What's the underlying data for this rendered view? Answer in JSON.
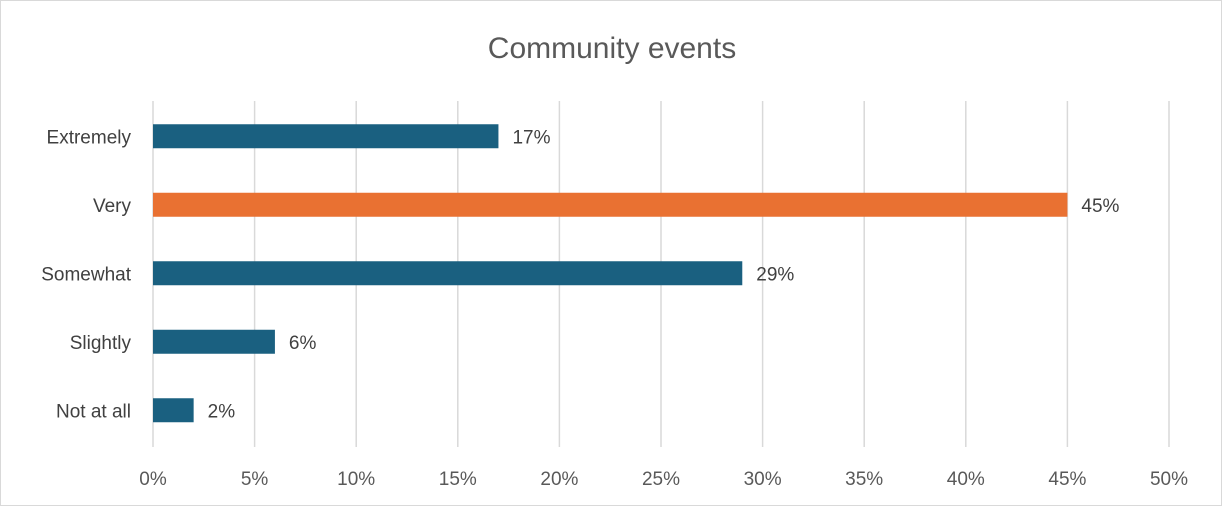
{
  "chart_data": {
    "type": "bar",
    "orientation": "horizontal",
    "title": "Community events",
    "categories": [
      "Extremely",
      "Very",
      "Somewhat",
      "Slightly",
      "Not at all"
    ],
    "values": [
      17,
      45,
      29,
      6,
      2
    ],
    "value_labels": [
      "17%",
      "45%",
      "29%",
      "6%",
      "2%"
    ],
    "highlight_index": 1,
    "xlim": [
      0,
      50
    ],
    "x_ticks": [
      0,
      5,
      10,
      15,
      20,
      25,
      30,
      35,
      40,
      45,
      50
    ],
    "x_tick_labels": [
      "0%",
      "5%",
      "10%",
      "15%",
      "20%",
      "25%",
      "30%",
      "35%",
      "40%",
      "45%",
      "50%"
    ],
    "grid": true,
    "legend": "none",
    "colors": {
      "bar": "#1a6080",
      "highlight": "#e97132"
    }
  }
}
